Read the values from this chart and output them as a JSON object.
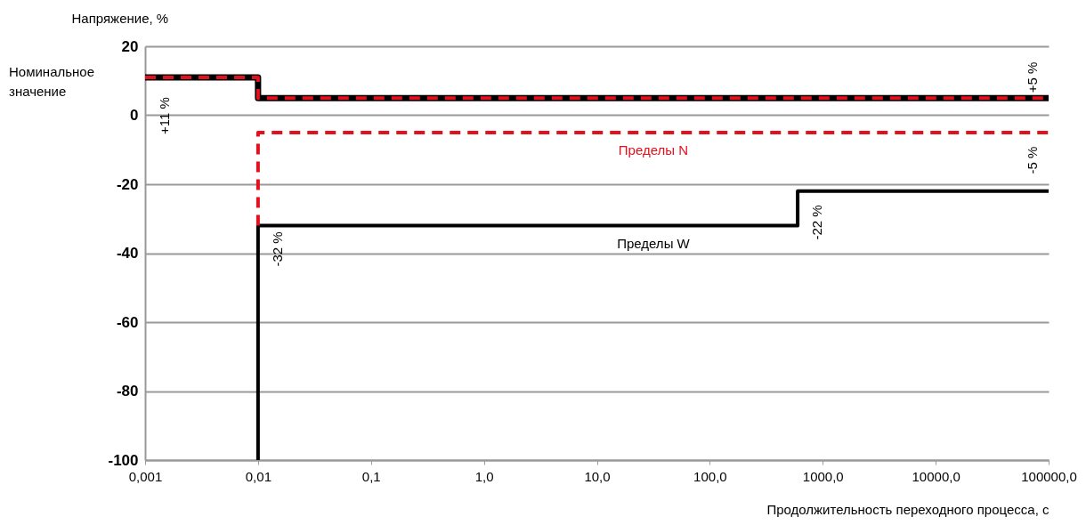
{
  "chart_data": {
    "type": "line",
    "xlabel": "Продолжительность переходного процесса, с",
    "ylabel": "Напряжение, %",
    "log": "x",
    "grid": "y",
    "legend": false,
    "xlim": [
      0.001,
      100000
    ],
    "ylim": [
      -100,
      20
    ],
    "xticks": [
      {
        "value": 0.001,
        "label": "0,001"
      },
      {
        "value": 0.01,
        "label": "0,01"
      },
      {
        "value": 0.1,
        "label": "0,1"
      },
      {
        "value": 1,
        "label": "1,0"
      },
      {
        "value": 10,
        "label": "10,0"
      },
      {
        "value": 100,
        "label": "100,0"
      },
      {
        "value": 1000,
        "label": "1000,0"
      },
      {
        "value": 10000,
        "label": "10000,0"
      },
      {
        "value": 100000,
        "label": "100000,0"
      }
    ],
    "yticks": [
      20,
      0,
      -20,
      -40,
      -60,
      -80,
      -100
    ],
    "series": [
      {
        "color": "#000000",
        "line_style": "solid",
        "x": [
          0.001,
          0.01,
          0.01,
          100000
        ],
        "values": [
          11,
          11,
          5,
          5
        ]
      },
      {
        "color": "#e3101e",
        "line_style": "dashed",
        "x": [
          0.001,
          0.01,
          0.01,
          100000
        ],
        "values": [
          11,
          11,
          5,
          5
        ]
      },
      {
        "name": "Пределы W",
        "color": "#000000",
        "line_style": "solid",
        "x": [
          0.01,
          0.01,
          600,
          600,
          100000
        ],
        "values": [
          -100,
          -32,
          -32,
          -22,
          -22
        ]
      },
      {
        "name": "Пределы N",
        "color": "#e3101e",
        "line_style": "dashed",
        "x": [
          0.01,
          0.01,
          100000
        ],
        "values": [
          -32,
          -5,
          -5
        ]
      }
    ],
    "annotations": [
      "Номинальное значение",
      "+11 %",
      "+5 %",
      "-5 %",
      "-32 %",
      "-22 %"
    ]
  }
}
